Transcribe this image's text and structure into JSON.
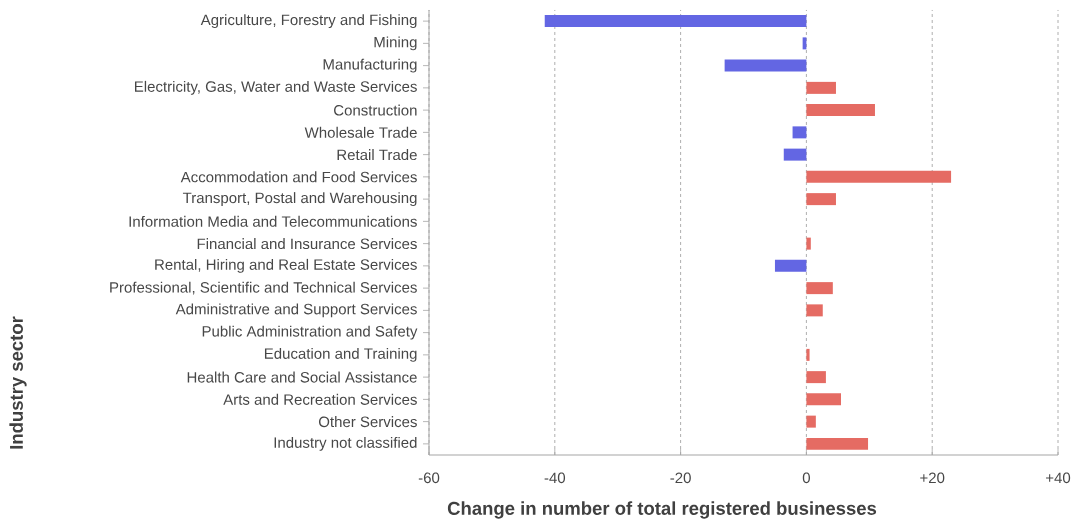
{
  "chart_data": {
    "type": "bar",
    "orientation": "horizontal",
    "xlabel": "Change in number of total registered businesses",
    "ylabel": "Industry sector",
    "categories": [
      "Agriculture, Forestry and Fishing",
      "Mining",
      "Manufacturing",
      "Electricity, Gas, Water and Waste Services",
      "Construction",
      "Wholesale Trade",
      "Retail Trade",
      "Accommodation and Food Services",
      "Transport, Postal and Warehousing",
      "Information Media and Telecommunications",
      "Financial and Insurance Services",
      "Rental, Hiring and Real Estate Services",
      "Professional, Scientific and Technical Services",
      "Administrative and Support Services",
      "Public Administration and Safety",
      "Education and Training",
      "Health Care and Social Assistance",
      "Arts and Recreation Services",
      "Other Services",
      "Industry not classified"
    ],
    "values": [
      -41.6,
      -0.6,
      -13.0,
      4.7,
      10.9,
      -2.2,
      -3.6,
      23.0,
      4.7,
      0,
      0.7,
      -5.0,
      4.2,
      2.6,
      0,
      0.5,
      3.1,
      5.5,
      1.5,
      9.8
    ],
    "colors": [
      "#6366e3",
      "#6366e3",
      "#6366e3",
      "#e56b63",
      "#e56b63",
      "#6366e3",
      "#6366e3",
      "#e56b63",
      "#e56b63",
      "#e56b63",
      "#e56b63",
      "#6366e3",
      "#e56b63",
      "#e56b63",
      "#e56b63",
      "#e56b63",
      "#e56b63",
      "#e56b63",
      "#e56b63",
      "#e56b63"
    ],
    "xlim": [
      -60,
      40
    ],
    "xticks": [
      -60,
      -40,
      -20,
      0,
      {
        "value": 20,
        "label": "+20"
      },
      {
        "value": 40,
        "label": "+40"
      }
    ],
    "grid": "x"
  }
}
